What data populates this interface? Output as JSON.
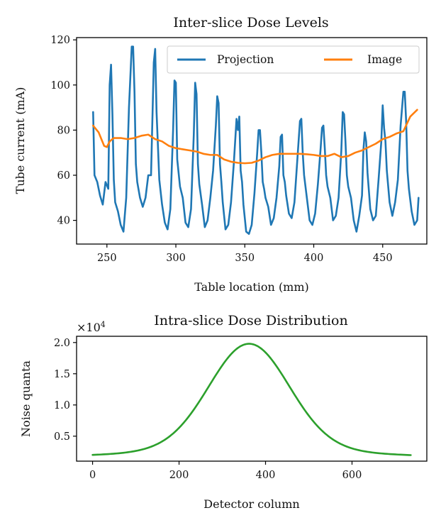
{
  "chart_data": [
    {
      "type": "line",
      "title": "Inter-slice Dose Levels",
      "xlabel": "Table location (mm)",
      "ylabel": "Tube current (mA)",
      "xlim": [
        228,
        482
      ],
      "ylim": [
        29.5,
        121
      ],
      "xticks": [
        "250",
        "300",
        "350",
        "400",
        "450"
      ],
      "yticks": [
        "40",
        "60",
        "80",
        "100",
        "120"
      ],
      "legend_position": "top-right",
      "series": [
        {
          "name": "Projection",
          "color": "#1f77b4",
          "x": [
            240,
            241,
            243,
            245,
            247,
            249,
            251,
            252,
            253,
            254,
            255,
            256,
            258,
            260,
            262,
            264,
            266,
            268,
            269,
            270,
            271,
            272,
            274,
            276,
            278,
            280,
            282,
            284,
            285,
            286,
            288,
            290,
            292,
            294,
            296,
            298,
            299,
            300,
            301,
            303,
            305,
            307,
            309,
            311,
            313,
            314,
            315,
            316,
            317,
            319,
            321,
            323,
            325,
            327,
            329,
            330,
            331,
            332,
            333,
            334,
            336,
            338,
            340,
            342,
            344,
            345,
            346,
            347,
            348,
            349,
            351,
            353,
            355,
            357,
            359,
            360,
            361,
            362,
            363,
            364,
            365,
            367,
            369,
            371,
            373,
            375,
            376,
            377,
            378,
            379,
            380,
            382,
            384,
            386,
            388,
            390,
            391,
            392,
            393,
            394,
            395,
            397,
            399,
            401,
            403,
            405,
            406,
            407,
            408,
            409,
            410,
            412,
            414,
            416,
            418,
            420,
            421,
            422,
            423,
            424,
            425,
            427,
            429,
            431,
            433,
            435,
            436,
            437,
            438,
            439,
            441,
            443,
            445,
            447,
            449,
            450,
            451,
            452,
            453,
            455,
            457,
            459,
            461,
            463,
            465,
            466,
            467,
            468,
            469,
            471,
            473,
            475,
            476
          ],
          "values": [
            88,
            60,
            57,
            51,
            47,
            57,
            54,
            100,
            109,
            87,
            58,
            48,
            44,
            38,
            35,
            50,
            90,
            117,
            117,
            97,
            65,
            57,
            50,
            46,
            50,
            60,
            60,
            110,
            116,
            88,
            58,
            47,
            39,
            36,
            45,
            80,
            102,
            101,
            67,
            55,
            50,
            39,
            37,
            45,
            78,
            101,
            96,
            65,
            56,
            47,
            37,
            40,
            50,
            62,
            82,
            95,
            92,
            65,
            57,
            48,
            36,
            38,
            48,
            65,
            85,
            80,
            86,
            62,
            57,
            47,
            35,
            34,
            38,
            52,
            70,
            80,
            80,
            70,
            57,
            54,
            50,
            46,
            38,
            41,
            50,
            64,
            77,
            78,
            60,
            57,
            51,
            43,
            41,
            48,
            66,
            84,
            85,
            70,
            60,
            55,
            50,
            40,
            38,
            43,
            56,
            72,
            81,
            82,
            72,
            60,
            55,
            50,
            40,
            42,
            50,
            71,
            88,
            87,
            75,
            60,
            55,
            50,
            40,
            35,
            42,
            51,
            71,
            79,
            75,
            61,
            45,
            40,
            42,
            58,
            75,
            91,
            81,
            75,
            62,
            48,
            42,
            48,
            58,
            82,
            97,
            97,
            84,
            62,
            54,
            44,
            38,
            40,
            50
          ]
        },
        {
          "name": "Image",
          "color": "#ff7f0e",
          "x": [
            240,
            244,
            246,
            248,
            250,
            252,
            255,
            260,
            265,
            270,
            275,
            280,
            285,
            290,
            295,
            300,
            305,
            310,
            315,
            320,
            325,
            330,
            335,
            340,
            345,
            350,
            355,
            360,
            365,
            370,
            375,
            380,
            385,
            390,
            395,
            400,
            405,
            410,
            415,
            420,
            425,
            430,
            435,
            440,
            445,
            450,
            455,
            460,
            465,
            470,
            475
          ],
          "values": [
            82,
            79,
            76,
            73,
            72.5,
            75,
            76.5,
            76.5,
            76,
            76.5,
            77.5,
            78,
            76,
            75,
            73,
            72,
            71.5,
            71,
            70.5,
            69.5,
            69,
            69,
            67,
            66,
            65.5,
            65.3,
            65.5,
            66.5,
            68,
            69,
            69.5,
            69.5,
            69.5,
            69.5,
            69.3,
            69,
            68.5,
            68.5,
            69.5,
            68,
            68.5,
            70,
            71,
            72.5,
            74,
            76,
            77,
            78.5,
            79.5,
            86,
            89
          ]
        }
      ]
    },
    {
      "type": "line",
      "title": "Intra-slice Dose Distribution",
      "xlabel": "Detector column",
      "ylabel": "Noise quanta",
      "multiplier": "×10",
      "multiplier_exp": "4",
      "xlim": [
        -37,
        773
      ],
      "ylim": [
        0.1,
        2.1
      ],
      "xticks": [
        "0",
        "200",
        "400",
        "600"
      ],
      "yticks": [
        "0.5",
        "1.0",
        "1.5",
        "2.0"
      ],
      "series": [
        {
          "name": "Noise quanta",
          "color": "#2ca02c",
          "model": "gaussian_plus_lorentzian",
          "peak_x": 362,
          "peak_value": 1.98,
          "edge_value": 0.2,
          "x_range": [
            0,
            736
          ]
        }
      ]
    }
  ]
}
